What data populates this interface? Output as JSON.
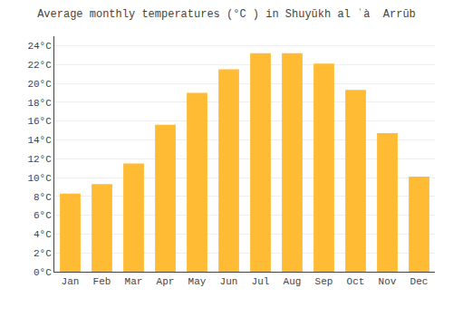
{
  "chart_data": {
    "type": "bar",
    "title": "Average monthly temperatures (°C ) in Shuyūkh al ʿà  Arrūb",
    "categories": [
      "Jan",
      "Feb",
      "Mar",
      "Apr",
      "May",
      "Jun",
      "Jul",
      "Aug",
      "Sep",
      "Oct",
      "Nov",
      "Dec"
    ],
    "values": [
      8.3,
      9.3,
      11.5,
      15.6,
      19.0,
      21.5,
      23.2,
      23.2,
      22.1,
      19.3,
      14.7,
      10.1
    ],
    "color": "#FFBB33",
    "ylim": [
      0,
      25
    ],
    "yticks": [
      {
        "value": 0,
        "label": "0°C"
      },
      {
        "value": 2,
        "label": "2°C"
      },
      {
        "value": 4,
        "label": "4°C"
      },
      {
        "value": 6,
        "label": "6°C"
      },
      {
        "value": 8,
        "label": "8°C"
      },
      {
        "value": 10,
        "label": "10°C"
      },
      {
        "value": 12,
        "label": "12°C"
      },
      {
        "value": 14,
        "label": "14°C"
      },
      {
        "value": 16,
        "label": "16°C"
      },
      {
        "value": 18,
        "label": "18°C"
      },
      {
        "value": 20,
        "label": "20°C"
      },
      {
        "value": 22,
        "label": "22°C"
      },
      {
        "value": 24,
        "label": "24°C"
      }
    ],
    "grid": true
  }
}
